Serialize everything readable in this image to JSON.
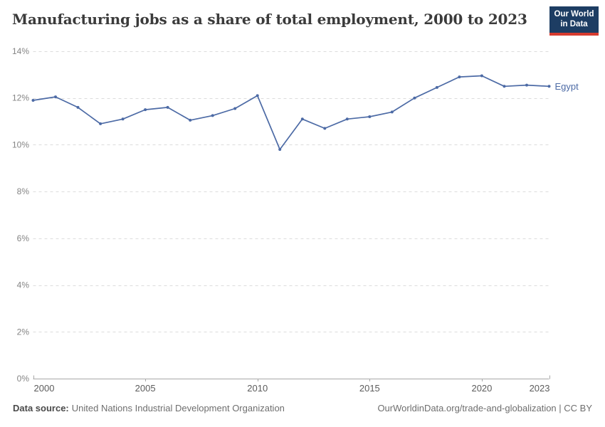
{
  "header": {
    "title": "Manufacturing jobs as a share of total employment, 2000 to 2023",
    "logo": {
      "line1": "Our World",
      "line2": "in Data"
    }
  },
  "chart_data": {
    "type": "line",
    "title": "Manufacturing jobs as a share of total employment, 2000 to 2023",
    "x": [
      2000,
      2001,
      2002,
      2003,
      2004,
      2005,
      2006,
      2007,
      2008,
      2009,
      2010,
      2011,
      2012,
      2013,
      2014,
      2015,
      2016,
      2017,
      2018,
      2019,
      2020,
      2021,
      2022,
      2023
    ],
    "series": [
      {
        "name": "Egypt",
        "color": "#4c6aa5",
        "values": [
          11.9,
          12.05,
          11.6,
          10.9,
          11.1,
          11.5,
          11.6,
          11.05,
          11.25,
          11.55,
          12.1,
          9.8,
          11.1,
          10.7,
          11.1,
          11.2,
          11.4,
          12.0,
          12.45,
          12.9,
          12.95,
          12.5,
          12.55,
          12.5
        ]
      }
    ],
    "xlabel": "",
    "ylabel": "",
    "xlim": [
      2000,
      2023
    ],
    "ylim": [
      0,
      14
    ],
    "xticks": [
      2000,
      2005,
      2010,
      2015,
      2020,
      2023
    ],
    "xtick_labels": [
      "2000",
      "2005",
      "2010",
      "2015",
      "2020",
      "2023"
    ],
    "yticks": [
      0,
      2,
      4,
      6,
      8,
      10,
      12,
      14
    ],
    "ytick_labels": [
      "0%",
      "2%",
      "4%",
      "6%",
      "8%",
      "10%",
      "12%",
      "14%"
    ],
    "grid": "horizontal-dashed",
    "legend_position": "end-of-line-label"
  },
  "footer": {
    "data_source_label": "Data source:",
    "data_source_value": "United Nations Industrial Development Organization",
    "credit": "OurWorldinData.org/trade-and-globalization | CC BY"
  },
  "colors": {
    "line": "#4c6aa5",
    "gridline": "#dcdcdc",
    "axis": "#a8a8a8",
    "ytick_text": "#858585",
    "xtick_text": "#5c5c5c",
    "logo_bg": "#1d3d63",
    "logo_red": "#d63b2f"
  }
}
